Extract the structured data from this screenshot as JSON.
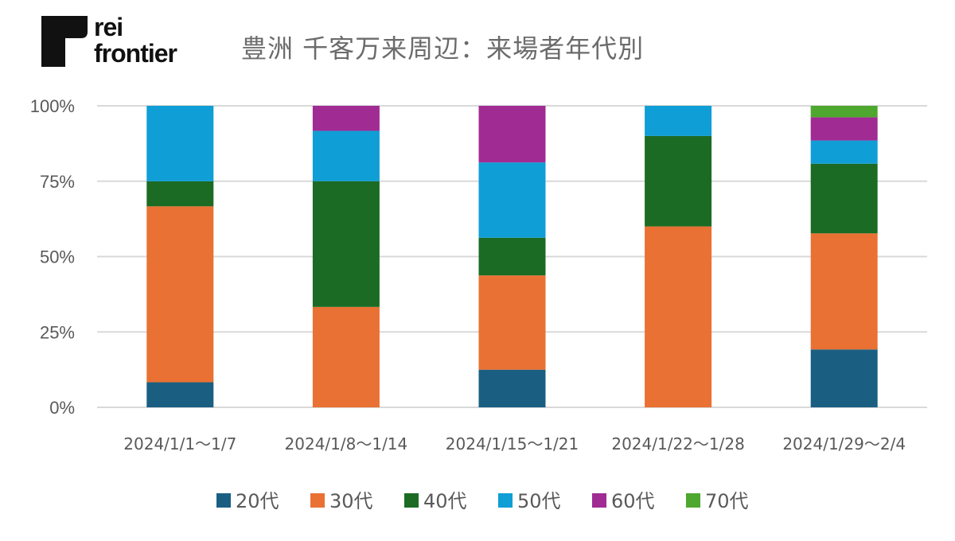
{
  "logo": {
    "line1": "rei",
    "line2": "frontier"
  },
  "chart_data": {
    "type": "bar",
    "stacked": true,
    "percent_stacked": true,
    "title": "豊洲 千客万来周辺：来場者年代別",
    "xlabel": "",
    "ylabel": "",
    "ylim": [
      0,
      100
    ],
    "yticks": [
      "0%",
      "25%",
      "50%",
      "75%",
      "100%"
    ],
    "grid": true,
    "legend_position": "bottom",
    "categories": [
      "2024/1/1～1/7",
      "2024/1/8～1/14",
      "2024/1/15～1/21",
      "2024/1/22～1/28",
      "2024/1/29～2/4"
    ],
    "series": [
      {
        "name": "20代",
        "color": "#1a5f82",
        "values": [
          8.3,
          0,
          12.5,
          0,
          19.2
        ]
      },
      {
        "name": "30代",
        "color": "#e97133",
        "values": [
          58.3,
          33.3,
          31.3,
          60.0,
          38.5
        ]
      },
      {
        "name": "40代",
        "color": "#1b6b24",
        "values": [
          8.3,
          41.7,
          12.5,
          30.0,
          23.1
        ]
      },
      {
        "name": "50代",
        "color": "#0f9ed5",
        "values": [
          25.0,
          16.7,
          25.0,
          10.0,
          7.7
        ]
      },
      {
        "name": "60代",
        "color": "#a02b93",
        "values": [
          0,
          8.3,
          18.8,
          0,
          7.7
        ]
      },
      {
        "name": "70代",
        "color": "#4ea72e",
        "values": [
          0,
          0,
          0,
          0,
          3.8
        ]
      }
    ]
  }
}
